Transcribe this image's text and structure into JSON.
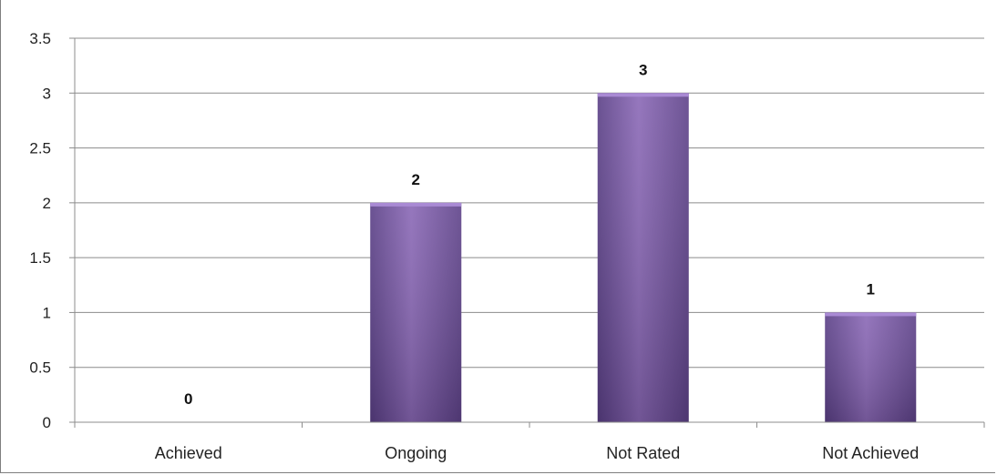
{
  "chart_data": {
    "type": "bar",
    "categories": [
      "Achieved",
      "Ongoing",
      "Not Rated",
      "Not Achieved"
    ],
    "values": [
      0,
      2,
      3,
      1
    ],
    "data_labels": [
      "0",
      "2",
      "3",
      "1"
    ],
    "yticks": [
      "0",
      "0.5",
      "1",
      "1.5",
      "2",
      "2.5",
      "3",
      "3.5"
    ],
    "ylim": [
      0,
      3.5
    ],
    "grid": true,
    "bar_color": "#8060A8"
  }
}
